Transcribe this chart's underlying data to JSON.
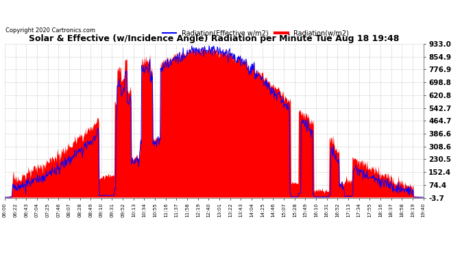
{
  "title": "Solar & Effective (w/Incidence Angle) Radiation per Minute Tue Aug 18 19:48",
  "copyright": "Copyright 2020 Cartronics.com",
  "legend_effective": "Radiation(Effective w/m2)",
  "legend_radiation": "Radiation(w/m2)",
  "ylabel_right_values": [
    933.0,
    854.9,
    776.9,
    698.8,
    620.8,
    542.7,
    464.7,
    386.6,
    308.6,
    230.5,
    152.4,
    74.4,
    -3.7
  ],
  "ymin": -3.7,
  "ymax": 933.0,
  "background_color": "#ffffff",
  "plot_bg_color": "#ffffff",
  "grid_color": "#cccccc",
  "fill_color": "#ff0000",
  "line_color_effective": "#0000ff",
  "line_color_radiation": "#ff0000",
  "x_tick_labels": [
    "06:00",
    "06:22",
    "06:43",
    "07:04",
    "07:25",
    "07:46",
    "08:07",
    "08:28",
    "08:49",
    "09:10",
    "09:31",
    "09:52",
    "10:13",
    "10:34",
    "10:55",
    "11:16",
    "11:37",
    "11:58",
    "12:19",
    "12:40",
    "13:01",
    "13:22",
    "13:43",
    "14:04",
    "14:25",
    "14:46",
    "15:07",
    "15:28",
    "15:49",
    "16:10",
    "16:31",
    "16:52",
    "17:13",
    "17:34",
    "17:55",
    "18:16",
    "18:37",
    "18:58",
    "19:19",
    "19:40"
  ],
  "n_minutes": 820
}
